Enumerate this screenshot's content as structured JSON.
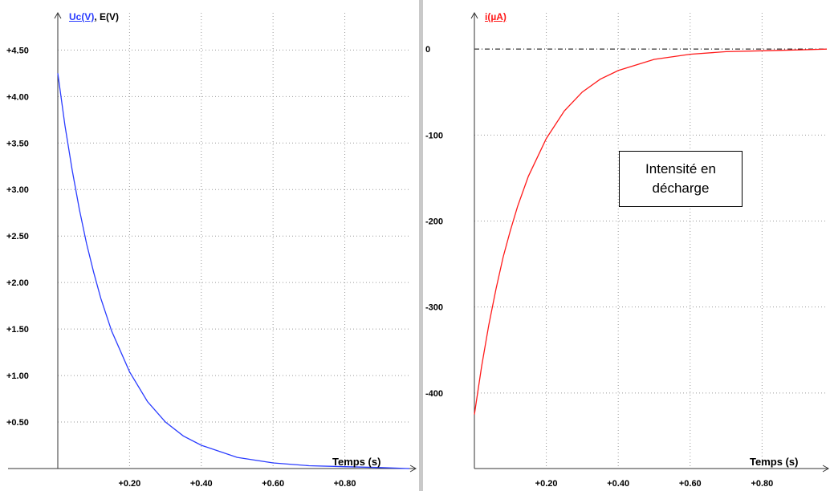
{
  "chart_data": [
    {
      "type": "line",
      "legend_primary": "Uc(V)",
      "legend_separator": ",",
      "legend_secondary": "E(V)",
      "xlabel": "Temps (s)",
      "xlim": [
        0,
        0.98
      ],
      "ylim": [
        0,
        4.9
      ],
      "x_ticks": [
        0.2,
        0.4,
        0.6,
        0.8
      ],
      "x_tick_labels": [
        "+0.20",
        "+0.40",
        "+0.60",
        "+0.80"
      ],
      "y_ticks": [
        0.5,
        1.0,
        1.5,
        2.0,
        2.5,
        3.0,
        3.5,
        4.0,
        4.5
      ],
      "y_tick_labels": [
        "+0.50",
        "+1.00",
        "+1.50",
        "+2.00",
        "+2.50",
        "+3.00",
        "+3.50",
        "+4.00",
        "+4.50"
      ],
      "grid": true,
      "series": [
        {
          "name": "Uc(V)",
          "color": "#2a3cff",
          "x": [
            0,
            0.02,
            0.04,
            0.06,
            0.08,
            0.1,
            0.12,
            0.15,
            0.2,
            0.25,
            0.3,
            0.35,
            0.4,
            0.5,
            0.6,
            0.7,
            0.8,
            0.9,
            0.98
          ],
          "y": [
            4.25,
            3.69,
            3.21,
            2.79,
            2.42,
            2.11,
            1.83,
            1.48,
            1.04,
            0.72,
            0.5,
            0.35,
            0.25,
            0.12,
            0.06,
            0.03,
            0.02,
            0.01,
            0.0
          ]
        }
      ]
    },
    {
      "type": "line",
      "legend_primary": "i(µA)",
      "xlabel": "Temps (s)",
      "xlim": [
        0,
        0.98
      ],
      "ylim": [
        -500,
        30
      ],
      "x_ticks": [
        0.2,
        0.4,
        0.6,
        0.8
      ],
      "x_tick_labels": [
        "+0.20",
        "+0.40",
        "+0.60",
        "+0.80"
      ],
      "y_ticks": [
        0,
        -100,
        -200,
        -300,
        -400
      ],
      "y_tick_labels": [
        "0",
        "-100",
        "-200",
        "-300",
        "-400"
      ],
      "grid": true,
      "annotation": "Intensité en décharge",
      "series": [
        {
          "name": "i(µA)",
          "color": "#ff1a1a",
          "x": [
            0,
            0.02,
            0.04,
            0.06,
            0.08,
            0.1,
            0.12,
            0.15,
            0.2,
            0.25,
            0.3,
            0.35,
            0.4,
            0.5,
            0.6,
            0.7,
            0.8,
            0.9,
            0.98
          ],
          "y": [
            -425,
            -369,
            -321,
            -279,
            -242,
            -211,
            -183,
            -148,
            -104,
            -72,
            -50,
            -35,
            -25,
            -12,
            -6,
            -3,
            -2,
            -1,
            0
          ]
        }
      ]
    }
  ]
}
